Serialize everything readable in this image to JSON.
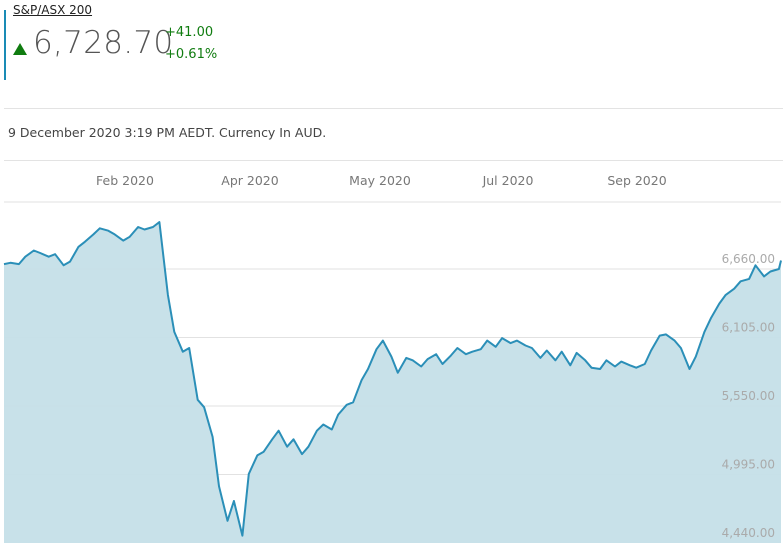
{
  "header": {
    "index_name": "S&P/ASX 200",
    "price": "6,728.70",
    "change_abs": "+41.00",
    "change_pct": "+0.61%",
    "direction": "up",
    "up_color": "#107c10",
    "accent_color": "#1a8bb5"
  },
  "timestamp": "9 December 2020 3:19 PM AEDT. Currency In AUD.",
  "chart_data": {
    "type": "area",
    "line_color": "#2b8fb8",
    "fill_color": "#c5dfe8",
    "x_tick_labels": [
      "Feb 2020",
      "Apr 2020",
      "May 2020",
      "Jul 2020",
      "Sep 2020"
    ],
    "y_tick_labels": [
      "6,660.00",
      "6,105.00",
      "5,550.00",
      "4,995.00",
      "4,440.00"
    ],
    "y_ticks": [
      6660,
      6105,
      5550,
      4995,
      4440
    ],
    "ylim": [
      4440,
      7200
    ],
    "grid": "horizontal",
    "x": [
      "2019-12-10",
      "2019-12-13",
      "2019-12-17",
      "2019-12-20",
      "2019-12-24",
      "2019-12-27",
      "2019-12-31",
      "2020-01-03",
      "2020-01-07",
      "2020-01-10",
      "2020-01-14",
      "2020-01-17",
      "2020-01-21",
      "2020-01-24",
      "2020-01-28",
      "2020-01-31",
      "2020-02-04",
      "2020-02-07",
      "2020-02-11",
      "2020-02-14",
      "2020-02-18",
      "2020-02-21",
      "2020-02-25",
      "2020-02-28",
      "2020-03-03",
      "2020-03-06",
      "2020-03-10",
      "2020-03-13",
      "2020-03-17",
      "2020-03-20",
      "2020-03-24",
      "2020-03-27",
      "2020-03-31",
      "2020-04-03",
      "2020-04-07",
      "2020-04-10",
      "2020-04-14",
      "2020-04-17",
      "2020-04-21",
      "2020-04-24",
      "2020-04-28",
      "2020-05-01",
      "2020-05-05",
      "2020-05-08",
      "2020-05-12",
      "2020-05-15",
      "2020-05-19",
      "2020-05-22",
      "2020-05-26",
      "2020-05-29",
      "2020-06-02",
      "2020-06-05",
      "2020-06-09",
      "2020-06-12",
      "2020-06-16",
      "2020-06-19",
      "2020-06-23",
      "2020-06-26",
      "2020-06-30",
      "2020-07-03",
      "2020-07-07",
      "2020-07-10",
      "2020-07-14",
      "2020-07-17",
      "2020-07-21",
      "2020-07-24",
      "2020-07-28",
      "2020-07-31",
      "2020-08-04",
      "2020-08-07",
      "2020-08-11",
      "2020-08-14",
      "2020-08-18",
      "2020-08-21",
      "2020-08-25",
      "2020-08-28",
      "2020-09-01",
      "2020-09-04",
      "2020-09-08",
      "2020-09-11",
      "2020-09-15",
      "2020-09-18",
      "2020-09-22",
      "2020-09-25",
      "2020-09-29",
      "2020-10-02",
      "2020-10-06",
      "2020-10-09",
      "2020-10-13",
      "2020-10-16",
      "2020-10-20",
      "2020-10-23",
      "2020-10-27",
      "2020-10-30",
      "2020-11-03",
      "2020-11-06",
      "2020-11-10",
      "2020-11-13",
      "2020-11-17",
      "2020-11-20",
      "2020-11-24",
      "2020-11-27",
      "2020-12-01",
      "2020-12-04",
      "2020-12-08",
      "2020-12-09"
    ],
    "values": [
      6700,
      6710,
      6700,
      6760,
      6810,
      6790,
      6760,
      6780,
      6690,
      6720,
      6840,
      6880,
      6940,
      6990,
      6970,
      6940,
      6890,
      6920,
      7000,
      6980,
      7000,
      7040,
      6450,
      6150,
      5990,
      6020,
      5600,
      5540,
      5300,
      4900,
      4620,
      4780,
      4500,
      5000,
      5150,
      5180,
      5280,
      5350,
      5220,
      5280,
      5160,
      5220,
      5350,
      5400,
      5360,
      5480,
      5560,
      5580,
      5760,
      5850,
      6010,
      6080,
      5950,
      5820,
      5940,
      5920,
      5870,
      5930,
      5970,
      5890,
      5960,
      6020,
      5970,
      5990,
      6010,
      6080,
      6030,
      6100,
      6060,
      6080,
      6040,
      6020,
      5940,
      6000,
      5920,
      5990,
      5880,
      5980,
      5920,
      5860,
      5850,
      5920,
      5870,
      5910,
      5880,
      5860,
      5890,
      6000,
      6120,
      6130,
      6080,
      6020,
      5850,
      5950,
      6150,
      6260,
      6380,
      6450,
      6500,
      6560,
      6580,
      6690,
      6600,
      6640,
      6660,
      6728.7
    ]
  }
}
